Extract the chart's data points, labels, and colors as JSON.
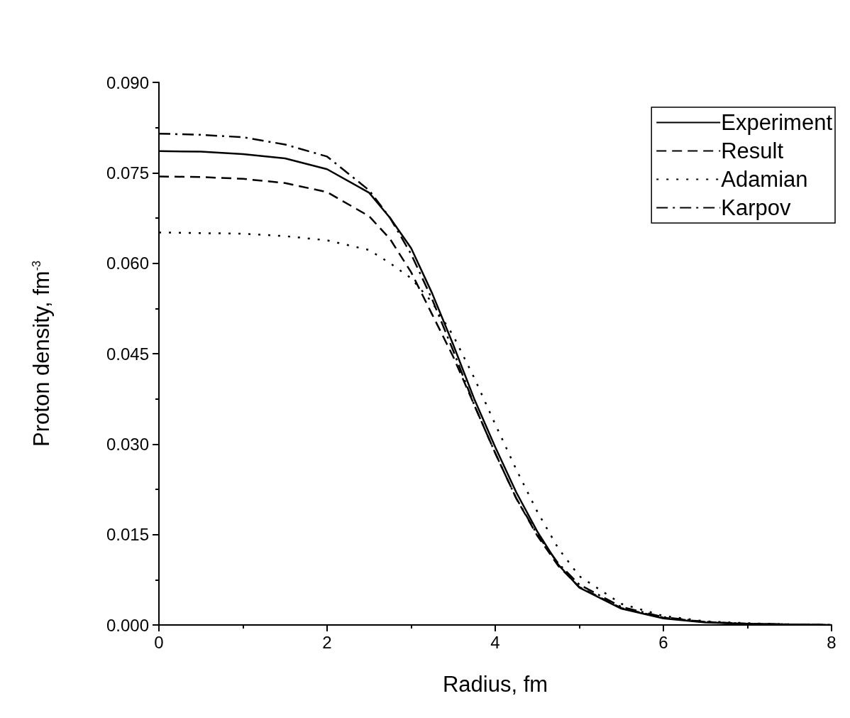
{
  "chart_data": {
    "type": "line",
    "xlabel": "Radius, fm",
    "ylabel": "Proton density, fm$^{-3}$",
    "x": [
      0,
      0.5,
      1,
      1.5,
      2,
      2.5,
      2.75,
      3,
      3.25,
      3.5,
      3.75,
      4,
      4.25,
      4.5,
      4.75,
      5,
      5.5,
      6,
      6.5,
      7,
      7.5,
      8
    ],
    "series": [
      {
        "name": "Experiment",
        "color": "#000000",
        "line_style": "solid",
        "values": [
          0.0786,
          0.0785,
          0.0781,
          0.0774,
          0.0756,
          0.0717,
          0.0675,
          0.0625,
          0.055,
          0.0465,
          0.0375,
          0.0295,
          0.022,
          0.0155,
          0.01,
          0.0062,
          0.0027,
          0.0011,
          0.0004,
          0.0002,
          0.0001,
          0
        ]
      },
      {
        "name": "Result",
        "color": "#000000",
        "line_style": "dashed",
        "values": [
          0.0744,
          0.0743,
          0.074,
          0.0733,
          0.0718,
          0.0678,
          0.064,
          0.0585,
          0.0515,
          0.0445,
          0.0365,
          0.0285,
          0.021,
          0.0148,
          0.0098,
          0.0063,
          0.0028,
          0.0012,
          0.0005,
          0.0002,
          0.0001,
          0
        ]
      },
      {
        "name": "Adamian",
        "color": "#000000",
        "line_style": "dotted",
        "values": [
          0.0651,
          0.065,
          0.0649,
          0.0645,
          0.0638,
          0.0622,
          0.06,
          0.0575,
          0.0535,
          0.048,
          0.041,
          0.0333,
          0.0258,
          0.0188,
          0.0127,
          0.0081,
          0.0035,
          0.0015,
          0.0006,
          0.0003,
          0.0001,
          0
        ]
      },
      {
        "name": "Karpov",
        "color": "#000000",
        "line_style": "dashdot",
        "values": [
          0.0815,
          0.0813,
          0.0809,
          0.0797,
          0.0777,
          0.0721,
          0.0675,
          0.0615,
          0.054,
          0.0455,
          0.0365,
          0.0285,
          0.021,
          0.015,
          0.0102,
          0.0067,
          0.003,
          0.0013,
          0.0005,
          0.0002,
          0.0001,
          0
        ]
      }
    ],
    "xlim": [
      0,
      8
    ],
    "xticks": [
      0,
      2,
      4,
      6,
      8
    ],
    "ylim": [
      0,
      0.09
    ],
    "yticks": [
      {
        "value": 0,
        "label": "0.000"
      },
      {
        "value": 0.015,
        "label": "0.015"
      },
      {
        "value": 0.03,
        "label": "0.030"
      },
      {
        "value": 0.045,
        "label": "0.045"
      },
      {
        "value": 0.06,
        "label": "0.060"
      },
      {
        "value": 0.075,
        "label": "0.075"
      },
      {
        "value": 0.09,
        "label": "0.090"
      }
    ],
    "grid": false,
    "legend": "top right",
    "marker": "none"
  }
}
